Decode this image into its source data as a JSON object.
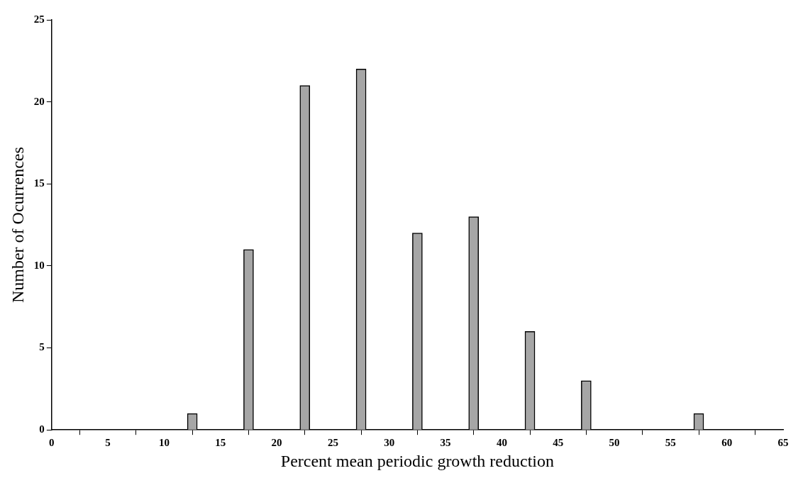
{
  "chart_data": {
    "type": "bar",
    "xlabel": "Percent mean periodic growth reduction",
    "ylabel": "Number of Ocurrences",
    "x": [
      12.5,
      17.5,
      22.5,
      27.5,
      32.5,
      37.5,
      42.5,
      47.5,
      57.5
    ],
    "values": [
      1,
      11,
      21,
      22,
      12,
      13,
      6,
      3,
      1
    ],
    "color": "#a6a6a6",
    "xlim": [
      0,
      65
    ],
    "xticks": [
      0,
      5,
      10,
      15,
      20,
      25,
      30,
      35,
      40,
      45,
      50,
      55,
      60,
      65
    ],
    "ylim": [
      0,
      25
    ],
    "yticks": [
      0,
      5,
      10,
      15,
      20,
      25
    ],
    "grid": false
  }
}
